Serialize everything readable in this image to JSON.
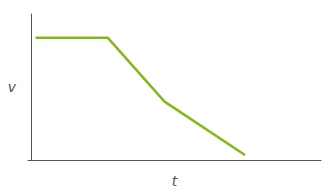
{
  "chart_data": {
    "type": "line",
    "x": [
      0.02,
      0.27,
      0.47,
      0.75
    ],
    "values": [
      0.88,
      0.88,
      0.42,
      0.04
    ],
    "color": "#82b81a",
    "xlabel": "t",
    "ylabel": "v",
    "xlim": [
      -0.01,
      1.02
    ],
    "ylim": [
      0,
      1.05
    ],
    "xticks": [],
    "yticks": [],
    "tick_labels": false,
    "grid": false
  }
}
